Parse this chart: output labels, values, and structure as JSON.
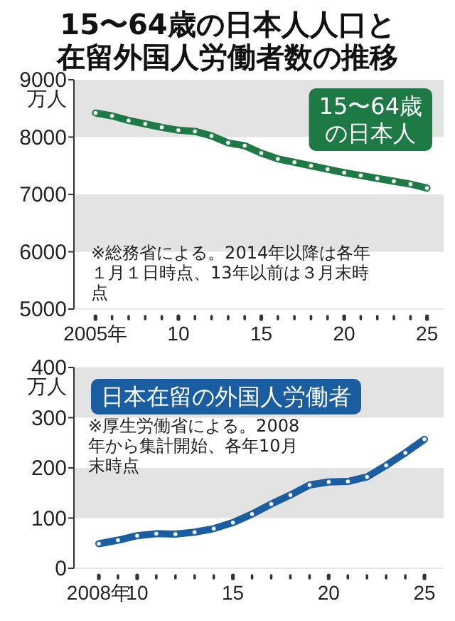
{
  "chart_data": [
    {
      "type": "line",
      "title": "15〜64歳の日本人人口と在留外国人労働者数の推移",
      "ylabel": "万人",
      "x": [
        2005,
        2006,
        2007,
        2008,
        2009,
        2010,
        2011,
        2012,
        2013,
        2014,
        2015,
        2016,
        2017,
        2018,
        2019,
        2020,
        2021,
        2022,
        2023,
        2024,
        2025
      ],
      "series": [
        {
          "name": "15〜64歳の日本人",
          "color": "#1e7a45",
          "values": [
            8420,
            8370,
            8290,
            8230,
            8170,
            8120,
            8100,
            8020,
            7900,
            7850,
            7720,
            7620,
            7560,
            7500,
            7440,
            7380,
            7330,
            7280,
            7230,
            7180,
            7110
          ]
        }
      ],
      "xlim": [
        2003.7,
        2026
      ],
      "ylim": [
        5000,
        9000
      ],
      "xticks": [
        {
          "value": 2005,
          "label": "2005年"
        },
        {
          "value": 2006,
          "label": null
        },
        {
          "value": 2007,
          "label": null
        },
        {
          "value": 2008,
          "label": null
        },
        {
          "value": 2009,
          "label": null
        },
        {
          "value": 2010,
          "label": "10"
        },
        {
          "value": 2011,
          "label": null
        },
        {
          "value": 2012,
          "label": null
        },
        {
          "value": 2013,
          "label": null
        },
        {
          "value": 2014,
          "label": null
        },
        {
          "value": 2015,
          "label": "15"
        },
        {
          "value": 2016,
          "label": null
        },
        {
          "value": 2017,
          "label": null
        },
        {
          "value": 2018,
          "label": null
        },
        {
          "value": 2019,
          "label": null
        },
        {
          "value": 2020,
          "label": "20"
        },
        {
          "value": 2021,
          "label": null
        },
        {
          "value": 2022,
          "label": null
        },
        {
          "value": 2023,
          "label": null
        },
        {
          "value": 2024,
          "label": null
        },
        {
          "value": 2025,
          "label": "25"
        }
      ],
      "yticks": [
        5000,
        6000,
        7000,
        8000,
        9000
      ],
      "bands": [
        {
          "axis": "y",
          "from": 8000,
          "to": 9000,
          "color": "#e3e3e3"
        },
        {
          "axis": "y",
          "from": 6000,
          "to": 7000,
          "color": "#e3e3e3"
        }
      ],
      "annotations": [
        "※総務省による。2014年以降は各年１月１日時点、13年以前は３月末時点"
      ],
      "legend": "top right",
      "marker": "circle",
      "line_style": "solid",
      "grid": false
    },
    {
      "type": "line",
      "ylabel": "万人",
      "x": [
        2008,
        2009,
        2010,
        2011,
        2012,
        2013,
        2014,
        2015,
        2016,
        2017,
        2018,
        2019,
        2020,
        2021,
        2022,
        2023,
        2024,
        2025
      ],
      "series": [
        {
          "name": "日本在留の外国人労働者",
          "color": "#1a5da0",
          "values": [
            49,
            56,
            65,
            69,
            68,
            72,
            79,
            91,
            108,
            128,
            146,
            166,
            172,
            173,
            182,
            205,
            230,
            257
          ]
        }
      ],
      "xlim": [
        2006.7,
        2026
      ],
      "ylim": [
        0,
        400
      ],
      "xticks": [
        {
          "value": 2008,
          "label": "2008年"
        },
        {
          "value": 2009,
          "label": null
        },
        {
          "value": 2010,
          "label": "10"
        },
        {
          "value": 2011,
          "label": null
        },
        {
          "value": 2012,
          "label": null
        },
        {
          "value": 2013,
          "label": null
        },
        {
          "value": 2014,
          "label": null
        },
        {
          "value": 2015,
          "label": "15"
        },
        {
          "value": 2016,
          "label": null
        },
        {
          "value": 2017,
          "label": null
        },
        {
          "value": 2018,
          "label": null
        },
        {
          "value": 2019,
          "label": null
        },
        {
          "value": 2020,
          "label": "20"
        },
        {
          "value": 2021,
          "label": null
        },
        {
          "value": 2022,
          "label": null
        },
        {
          "value": 2023,
          "label": null
        },
        {
          "value": 2024,
          "label": null
        },
        {
          "value": 2025,
          "label": "25"
        }
      ],
      "yticks": [
        0,
        100,
        200,
        300,
        400
      ],
      "bands": [
        {
          "axis": "y",
          "from": 300,
          "to": 400,
          "color": "#e3e3e3"
        },
        {
          "axis": "y",
          "from": 100,
          "to": 200,
          "color": "#e3e3e3"
        }
      ],
      "annotations": [
        "※厚生労働省による。2008年から集計開始、各年10月末時点"
      ],
      "legend": "top left",
      "marker": "circle",
      "line_style": "solid",
      "grid": false
    }
  ]
}
